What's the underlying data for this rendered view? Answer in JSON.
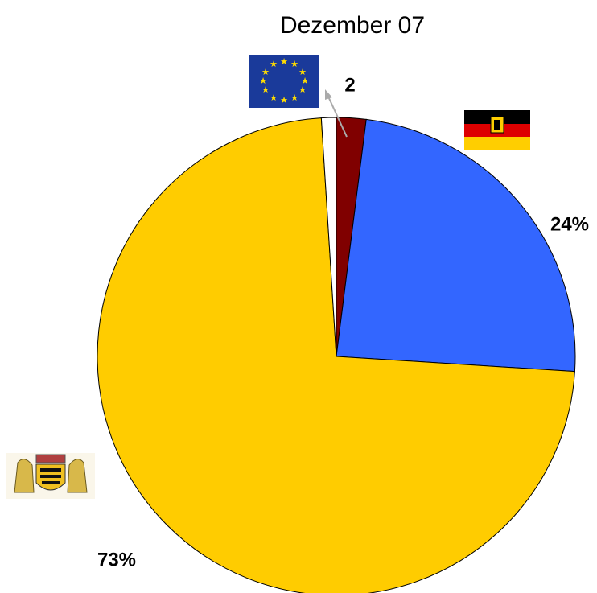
{
  "chart_data": {
    "type": "pie",
    "title": "Dezember 07",
    "categories": [
      null,
      null,
      null,
      null
    ],
    "values": [
      2,
      24,
      73,
      1
    ],
    "value_labels": [
      "2",
      "24%",
      "73%",
      null
    ],
    "colors": [
      "#800000",
      "#3366ff",
      "#ffcc00",
      "#ffffff"
    ]
  }
}
